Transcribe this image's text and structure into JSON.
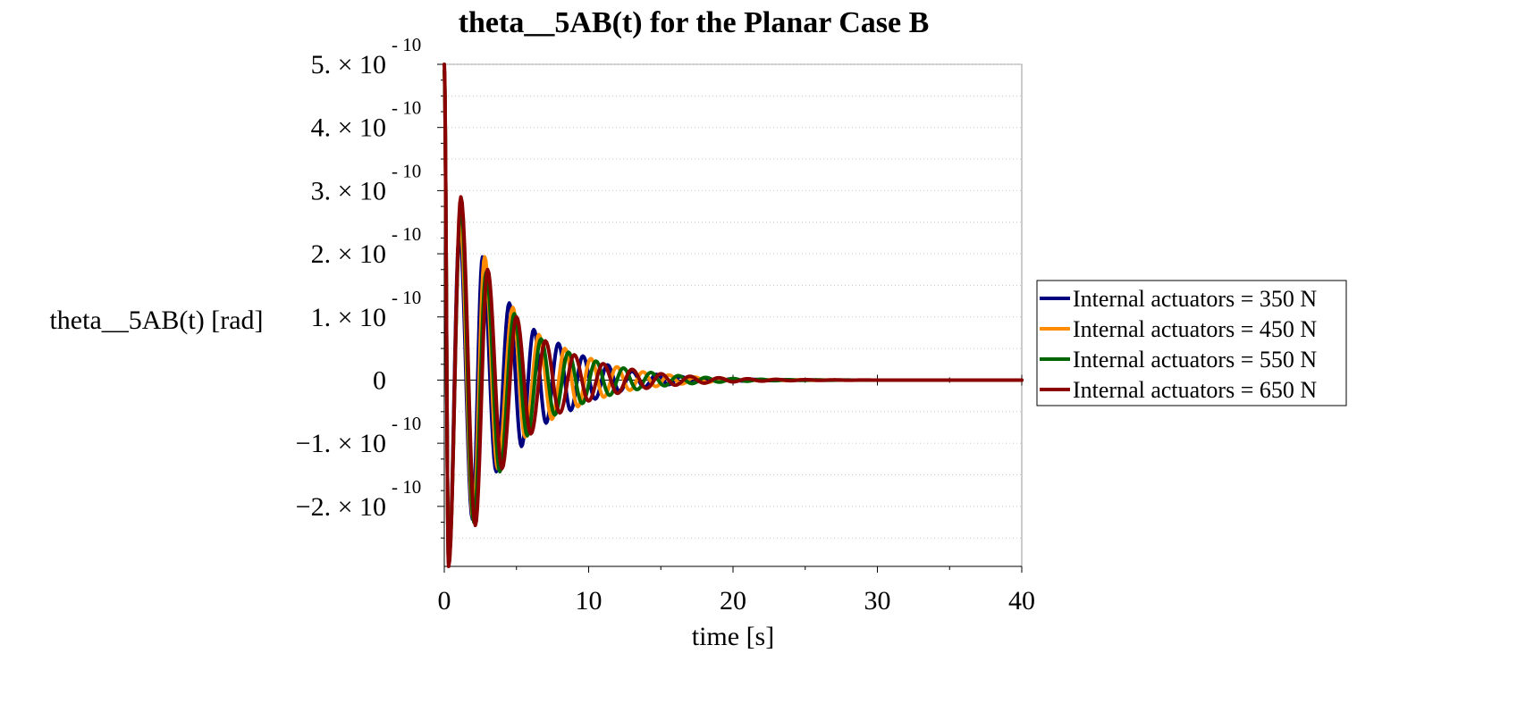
{
  "chart_data": {
    "type": "line",
    "title": "theta__5AB(t) for the Planar Case B",
    "xlabel": "time [s]",
    "ylabel": "theta__5AB(t) [rad]",
    "xlim": [
      0,
      40
    ],
    "ylim": [
      -2.95e-10,
      5e-10
    ],
    "grid": "horizontal-dotted",
    "legend_position": "right",
    "x_ticks": [
      {
        "value": 0,
        "label": "0"
      },
      {
        "value": 10,
        "label": "10"
      },
      {
        "value": 20,
        "label": "20"
      },
      {
        "value": 30,
        "label": "30"
      },
      {
        "value": 40,
        "label": "40"
      }
    ],
    "y_ticks": [
      {
        "value": 5e-10,
        "mantissa": "5. × 10",
        "exponent": "- 10"
      },
      {
        "value": 4e-10,
        "mantissa": "4. × 10",
        "exponent": "- 10"
      },
      {
        "value": 3e-10,
        "mantissa": "3. × 10",
        "exponent": "- 10"
      },
      {
        "value": 2e-10,
        "mantissa": "2. × 10",
        "exponent": "- 10"
      },
      {
        "value": 1e-10,
        "mantissa": "1. × 10",
        "exponent": "- 10"
      },
      {
        "value": 0,
        "mantissa": "0",
        "exponent": ""
      },
      {
        "value": -1e-10,
        "mantissa": "−1. × 10",
        "exponent": "- 10"
      },
      {
        "value": -2e-10,
        "mantissa": "−2. × 10",
        "exponent": "- 10"
      }
    ],
    "series": [
      {
        "name": "Internal actuators = 350 N",
        "color": "#00007f",
        "x": [
          0,
          0.3,
          1.05,
          1.95,
          2.65,
          3.6,
          4.5,
          5.35,
          6.2,
          7.05,
          7.9,
          8.75,
          9.6,
          10.45,
          11.3,
          12.15,
          13.0,
          13.85,
          14.7,
          15.55,
          16.4,
          17.25,
          18.1,
          18.95,
          19.8,
          20.65,
          21.5,
          22.35,
          23.2,
          24.05,
          24.9,
          25.75,
          26.6,
          40
        ],
        "y": [
          4.9e-10,
          -2.9e-10,
          2.35e-10,
          -2.2e-10,
          1.95e-10,
          -1.45e-10,
          1.22e-10,
          -1.05e-10,
          8e-11,
          -6.8e-11,
          5.8e-11,
          -4.8e-11,
          3.8e-11,
          -3e-11,
          2.4e-11,
          -1.8e-11,
          1.4e-11,
          -1.1e-11,
          9e-12,
          -7e-12,
          5.5e-12,
          -4e-12,
          3e-12,
          -2.3e-12,
          1.7e-12,
          -1.3e-12,
          1e-12,
          -7e-13,
          5e-13,
          -3e-13,
          2e-13,
          -1e-13,
          0,
          0
        ]
      },
      {
        "name": "Internal actuators = 450 N",
        "color": "#ff8c00",
        "x": [
          0,
          0.3,
          1.1,
          2.0,
          2.8,
          3.7,
          4.75,
          5.6,
          6.55,
          7.45,
          8.35,
          9.25,
          10.15,
          11.05,
          11.95,
          12.85,
          13.75,
          14.65,
          15.55,
          16.45,
          17.35,
          18.25,
          19.15,
          20.05,
          20.95,
          21.85,
          22.75,
          23.65,
          24.55,
          25.45,
          26.35,
          27.25,
          28.15,
          40
        ],
        "y": [
          4.9e-10,
          -2.9e-10,
          2.5e-10,
          -2.2e-10,
          1.95e-10,
          -1.4e-10,
          1.15e-10,
          -9e-11,
          7.2e-11,
          -6.2e-11,
          5e-11,
          -4.2e-11,
          3.4e-11,
          -2.7e-11,
          2.1e-11,
          -1.6e-11,
          1.3e-11,
          -1e-11,
          8e-12,
          -6e-12,
          4.7e-12,
          -3.6e-12,
          2.7e-12,
          -2e-12,
          1.5e-12,
          -1.1e-12,
          8e-13,
          -6e-13,
          4e-13,
          -3e-13,
          2e-13,
          -1e-13,
          0,
          0
        ]
      },
      {
        "name": "Internal actuators = 550 N",
        "color": "#006400",
        "x": [
          0,
          0.3,
          1.15,
          2.05,
          2.9,
          3.85,
          4.85,
          5.75,
          6.7,
          7.65,
          8.6,
          9.55,
          10.5,
          11.45,
          12.4,
          13.35,
          14.3,
          15.25,
          16.2,
          17.15,
          18.1,
          19.05,
          20.0,
          20.95,
          21.9,
          22.85,
          23.8,
          24.75,
          25.7,
          26.65,
          27.6,
          28.55,
          29.5,
          40
        ],
        "y": [
          4.9e-10,
          -2.9e-10,
          2.75e-10,
          -2.25e-10,
          1.7e-10,
          -1.45e-10,
          1.05e-10,
          -8.8e-11,
          6.5e-11,
          -5.5e-11,
          4.4e-11,
          -3.7e-11,
          3e-11,
          -2.4e-11,
          1.9e-11,
          -1.5e-11,
          1.2e-11,
          -9e-12,
          7e-12,
          -5.5e-12,
          4.2e-12,
          -3.2e-12,
          2.4e-12,
          -1.8e-12,
          1.3e-12,
          -1e-12,
          7e-13,
          -5e-13,
          4e-13,
          -3e-13,
          2e-13,
          -1e-13,
          0,
          0
        ]
      },
      {
        "name": "Internal actuators = 650 N",
        "color": "#8b0000",
        "x": [
          0,
          0.3,
          1.15,
          2.15,
          3.0,
          4.0,
          5.0,
          6.0,
          7.0,
          8.0,
          9.0,
          10.0,
          11.0,
          12.0,
          13.0,
          14.0,
          15.0,
          16.0,
          17.0,
          18.0,
          19.0,
          20.0,
          21.0,
          22.0,
          23.0,
          24.0,
          25.0,
          26.0,
          27.0,
          28.0,
          29.0,
          30.0,
          31.0,
          40
        ],
        "y": [
          5e-10,
          -2.95e-10,
          2.9e-10,
          -2.3e-10,
          1.75e-10,
          -1.4e-10,
          1e-10,
          -8.5e-11,
          6.2e-11,
          -5.2e-11,
          4e-11,
          -3.3e-11,
          2.6e-11,
          -2.1e-11,
          1.7e-11,
          -1.3e-11,
          1e-11,
          -8e-12,
          6e-12,
          -4.8e-12,
          3.7e-12,
          -2.8e-12,
          2.1e-12,
          -1.6e-12,
          1.2e-12,
          -9e-13,
          7e-13,
          -5e-13,
          4e-13,
          -3e-13,
          2e-13,
          -1e-13,
          0,
          0
        ]
      }
    ]
  }
}
